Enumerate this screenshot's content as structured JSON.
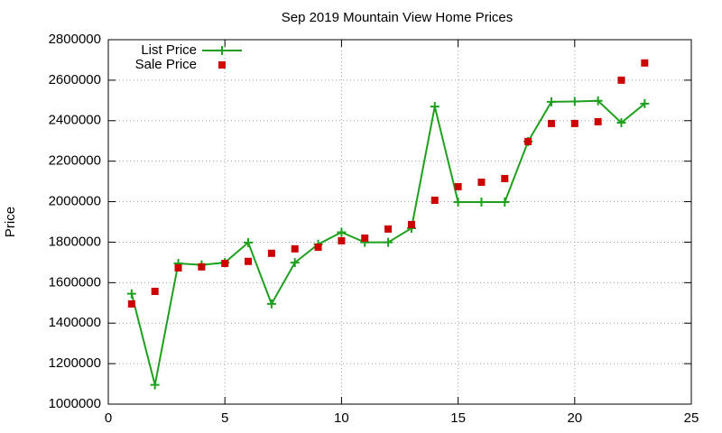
{
  "chart_data": {
    "type": "line",
    "title": "Sep 2019 Mountain View Home Prices",
    "y_label": "Price",
    "x": [
      1,
      2,
      3,
      4,
      5,
      6,
      7,
      8,
      9,
      10,
      11,
      12,
      13,
      14,
      15,
      16,
      17,
      18,
      19,
      20,
      21,
      22,
      23
    ],
    "series": [
      {
        "name": "List Price",
        "color": "#1ea01e",
        "style": "linespoints",
        "values": [
          1545000,
          1095000,
          1695000,
          1688000,
          1699000,
          1798000,
          1495000,
          1699000,
          1790000,
          1849000,
          1799000,
          1799000,
          1869000,
          2470000,
          1998000,
          1998000,
          1998000,
          2297000,
          2493000,
          2495000,
          2498000,
          2390000,
          2484000
        ]
      },
      {
        "name": "Sale Price",
        "color": "#cc0000",
        "style": "points",
        "values": [
          1495000,
          1557000,
          1673000,
          1678000,
          1695000,
          1705000,
          1745000,
          1767000,
          1775000,
          1807000,
          1820000,
          1865000,
          1887000,
          2007000,
          2074000,
          2096000,
          2114000,
          2297000,
          2386000,
          2386000,
          2395000,
          2600000,
          2685000
        ]
      }
    ],
    "xlim": [
      0,
      25
    ],
    "xticks": [
      0,
      5,
      10,
      15,
      20,
      25
    ],
    "ylim": [
      1000000,
      2800000
    ],
    "yticks": [
      1000000,
      1200000,
      1400000,
      1600000,
      1800000,
      2000000,
      2200000,
      2400000,
      2600000,
      2800000
    ],
    "grid": true,
    "legend": "top-left"
  }
}
